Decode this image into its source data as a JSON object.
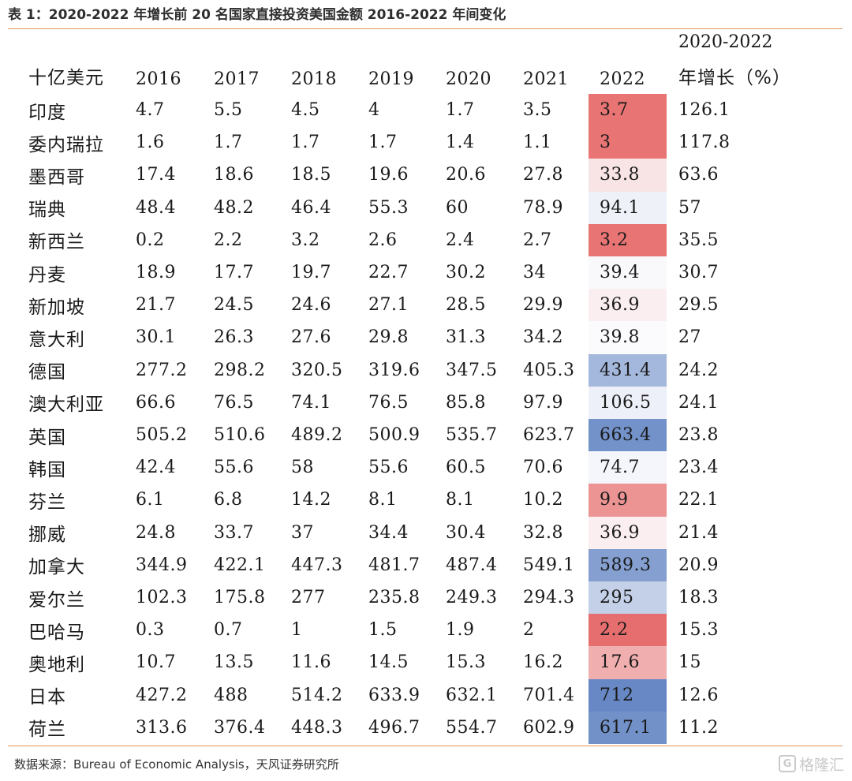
{
  "title": "表 1：2020-2022 年增长前 20 名国家直接投资美国金额 2016-2022 年间变化",
  "header": {
    "unit": "十亿美元",
    "years": [
      "2016",
      "2017",
      "2018",
      "2019",
      "2020",
      "2021",
      "2022"
    ],
    "growth_line1": "2020-2022",
    "growth_line2": "年增长（%）"
  },
  "rows": [
    {
      "country": "印度",
      "values": [
        "4.7",
        "5.5",
        "4.5",
        "4",
        "1.7",
        "3.5",
        "3.7"
      ],
      "growth": "126.1",
      "color_2022": "#e87474"
    },
    {
      "country": "委内瑞拉",
      "values": [
        "1.6",
        "1.7",
        "1.7",
        "1.7",
        "1.4",
        "1.1",
        "3"
      ],
      "growth": "117.8",
      "color_2022": "#e87474"
    },
    {
      "country": "墨西哥",
      "values": [
        "17.4",
        "18.6",
        "18.5",
        "19.6",
        "20.6",
        "27.8",
        "33.8"
      ],
      "growth": "63.6",
      "color_2022": "#f8e4e5"
    },
    {
      "country": "瑞典",
      "values": [
        "48.4",
        "48.2",
        "46.4",
        "55.3",
        "60",
        "78.9",
        "94.1"
      ],
      "growth": "57",
      "color_2022": "#eef1f8"
    },
    {
      "country": "新西兰",
      "values": [
        "0.2",
        "2.2",
        "3.2",
        "2.6",
        "2.4",
        "2.7",
        "3.2"
      ],
      "growth": "35.5",
      "color_2022": "#e87474"
    },
    {
      "country": "丹麦",
      "values": [
        "18.9",
        "17.7",
        "19.7",
        "22.7",
        "30.2",
        "34",
        "39.4"
      ],
      "growth": "30.7",
      "color_2022": "#f9f9fc"
    },
    {
      "country": "新加坡",
      "values": [
        "21.7",
        "24.5",
        "24.6",
        "27.1",
        "28.5",
        "29.9",
        "36.9"
      ],
      "growth": "29.5",
      "color_2022": "#faeef0"
    },
    {
      "country": "意大利",
      "values": [
        "30.1",
        "26.3",
        "27.6",
        "29.8",
        "31.3",
        "34.2",
        "39.8"
      ],
      "growth": "27",
      "color_2022": "#fbfbfd"
    },
    {
      "country": "德国",
      "values": [
        "277.2",
        "298.2",
        "320.5",
        "319.6",
        "347.5",
        "405.3",
        "431.4"
      ],
      "growth": "24.2",
      "color_2022": "#a3b8dc"
    },
    {
      "country": "澳大利亚",
      "values": [
        "66.6",
        "76.5",
        "74.1",
        "76.5",
        "85.8",
        "97.9",
        "106.5"
      ],
      "growth": "24.1",
      "color_2022": "#edf0f8"
    },
    {
      "country": "英国",
      "values": [
        "505.2",
        "510.6",
        "489.2",
        "500.9",
        "535.7",
        "623.7",
        "663.4"
      ],
      "growth": "23.8",
      "color_2022": "#7392c9"
    },
    {
      "country": "韩国",
      "values": [
        "42.4",
        "55.6",
        "58",
        "55.6",
        "60.5",
        "70.6",
        "74.7"
      ],
      "growth": "23.4",
      "color_2022": "#f5f6fb"
    },
    {
      "country": "芬兰",
      "values": [
        "6.1",
        "6.8",
        "14.2",
        "8.1",
        "8.1",
        "10.2",
        "9.9"
      ],
      "growth": "22.1",
      "color_2022": "#ec9494"
    },
    {
      "country": "挪威",
      "values": [
        "24.8",
        "33.7",
        "37",
        "34.4",
        "30.4",
        "32.8",
        "36.9"
      ],
      "growth": "21.4",
      "color_2022": "#faeef0"
    },
    {
      "country": "加拿大",
      "values": [
        "344.9",
        "422.1",
        "447.3",
        "481.7",
        "487.4",
        "549.1",
        "589.3"
      ],
      "growth": "20.9",
      "color_2022": "#849fd0"
    },
    {
      "country": "爱尔兰",
      "values": [
        "102.3",
        "175.8",
        "277",
        "235.8",
        "249.3",
        "294.3",
        "295"
      ],
      "growth": "18.3",
      "color_2022": "#c3d0e8"
    },
    {
      "country": "巴哈马",
      "values": [
        "0.3",
        "0.7",
        "1",
        "1.5",
        "1.9",
        "2",
        "2.2"
      ],
      "growth": "15.3",
      "color_2022": "#e76e6e"
    },
    {
      "country": "奥地利",
      "values": [
        "10.7",
        "13.5",
        "11.6",
        "14.5",
        "15.3",
        "16.2",
        "17.6"
      ],
      "growth": "15",
      "color_2022": "#f0aeaf"
    },
    {
      "country": "日本",
      "values": [
        "427.2",
        "488",
        "514.2",
        "633.9",
        "632.1",
        "701.4",
        "712"
      ],
      "growth": "12.6",
      "color_2022": "#6788c5"
    },
    {
      "country": "荷兰",
      "values": [
        "313.6",
        "376.4",
        "448.3",
        "496.7",
        "554.7",
        "602.9",
        "617.1"
      ],
      "growth": "11.2",
      "color_2022": "#7291c9"
    }
  ],
  "source": "数据来源：Bureau of Economic Analysis，天风证券研究所",
  "watermark": {
    "icon_text": "G",
    "text": "格隆汇"
  }
}
